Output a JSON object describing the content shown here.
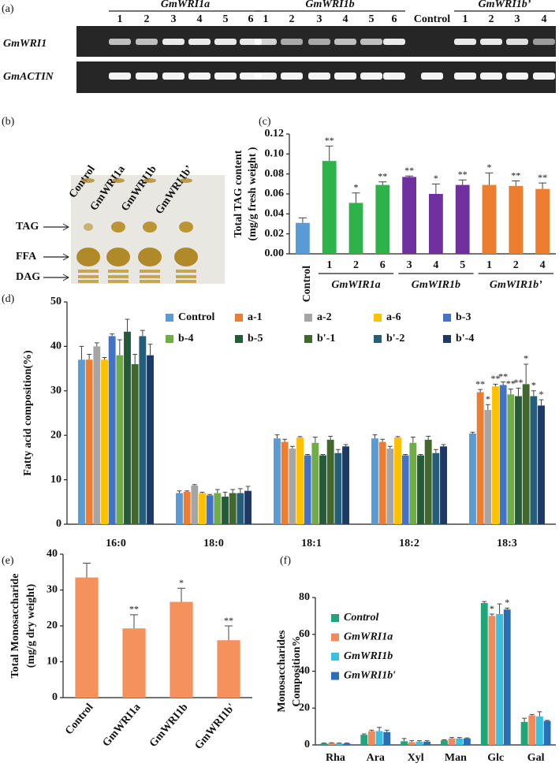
{
  "gel": {
    "panel_label": "(a)",
    "groups": [
      {
        "label": "GmWRI1a",
        "lanes": [
          "1",
          "2",
          "3",
          "4",
          "5",
          "6"
        ]
      },
      {
        "label": "GmWRI1b",
        "lanes": [
          "1",
          "2",
          "3",
          "4",
          "5",
          "6"
        ]
      },
      {
        "label": "Control",
        "lanes": []
      },
      {
        "label": "GmWRI1b’",
        "lanes": [
          "1",
          "2",
          "3",
          "4"
        ]
      }
    ],
    "rows": [
      "GmWRI1",
      "GmACTIN"
    ]
  },
  "tlc": {
    "panel_label": "(b)",
    "lanes": [
      "Control",
      "GmWRI1a",
      "GmWRI1b",
      "GmWRI1b’"
    ],
    "spots": [
      "TAG",
      "FFA",
      "DAG"
    ]
  },
  "chart_data": [
    {
      "type": "bar",
      "panel_label": "(c)",
      "ylabel": [
        "Total TAG content",
        "(mg/g fresh weight )"
      ],
      "categories": [
        "Control",
        "1",
        "2",
        "6",
        "3",
        "4",
        "5",
        "1",
        "2",
        "4"
      ],
      "values": [
        0.031,
        0.093,
        0.051,
        0.069,
        0.077,
        0.06,
        0.069,
        0.069,
        0.068,
        0.065
      ],
      "errors": [
        0.005,
        0.015,
        0.01,
        0.003,
        0.001,
        0.01,
        0.005,
        0.012,
        0.005,
        0.006
      ],
      "colors": [
        "#5b9bd5",
        "#2db34a",
        "#2db34a",
        "#2db34a",
        "#7030a0",
        "#7030a0",
        "#7030a0",
        "#ed7d31",
        "#ed7d31",
        "#ed7d31"
      ],
      "significance": [
        null,
        "**",
        "*",
        "**",
        "**",
        "*",
        "**",
        "*",
        "**",
        "**"
      ],
      "group_labels": [
        "GmWIR1a",
        "GmWIR1b",
        "GmWIR1b’"
      ],
      "ylim": [
        0,
        0.12
      ],
      "yticks": [
        {
          "value": 0,
          "label": "0.00"
        },
        {
          "value": 0.02,
          "label": "0.02"
        },
        {
          "value": 0.04,
          "label": "0.04"
        },
        {
          "value": 0.06,
          "label": "0.06"
        },
        {
          "value": 0.08,
          "label": "0.08"
        },
        {
          "value": 0.1,
          "label": "0.10"
        },
        {
          "value": 0.12,
          "label": "0.12"
        }
      ]
    },
    {
      "type": "bar",
      "panel_label": "(d)",
      "ylabel": [
        "Fatty acid composition(%)"
      ],
      "categories": [
        "16:0",
        "18:0",
        "18:1",
        "18:2",
        "18:3"
      ],
      "legend": "top",
      "series": [
        {
          "name": "Control",
          "color": "#5b9bd5",
          "values": [
            37,
            7,
            19.3,
            19.3,
            20.4
          ],
          "errors": [
            3,
            0.5,
            0.8,
            0.8,
            0.3
          ],
          "significance": [
            null,
            null,
            null,
            null,
            null
          ]
        },
        {
          "name": "a-1",
          "color": "#ed7d31",
          "values": [
            37,
            7.3,
            18.5,
            18.5,
            29.7
          ],
          "errors": [
            1.2,
            0.2,
            0.6,
            0.6,
            0.6
          ],
          "significance": [
            null,
            null,
            null,
            null,
            "**"
          ]
        },
        {
          "name": "a-2",
          "color": "#a5a5a5",
          "values": [
            40,
            8.7,
            17,
            17,
            25.7
          ],
          "errors": [
            0.8,
            0.2,
            0.5,
            0.5,
            1.2
          ],
          "significance": [
            null,
            null,
            null,
            null,
            "*"
          ]
        },
        {
          "name": "a-6",
          "color": "#ffc000",
          "values": [
            37,
            7,
            19.5,
            19.5,
            31
          ],
          "errors": [
            0.5,
            0.2,
            0.2,
            0.2,
            0.5
          ],
          "significance": [
            null,
            null,
            null,
            null,
            "**"
          ]
        },
        {
          "name": "b-3",
          "color": "#4472c4",
          "values": [
            42.3,
            6.5,
            15.5,
            15.5,
            31.3
          ],
          "errors": [
            0.5,
            0.2,
            0.2,
            0.2,
            0.7
          ],
          "significance": [
            null,
            null,
            null,
            null,
            "**"
          ]
        },
        {
          "name": "b-4",
          "color": "#70ad47",
          "values": [
            38,
            7,
            18.3,
            18.3,
            29.2
          ],
          "errors": [
            3.5,
            0.8,
            1.3,
            1.3,
            1.2
          ],
          "significance": [
            null,
            null,
            null,
            null,
            "**"
          ]
        },
        {
          "name": "b-5",
          "color": "#235a38",
          "values": [
            43.3,
            6.2,
            15.5,
            15.5,
            28.8
          ],
          "errors": [
            2.8,
            1,
            0.2,
            0.2,
            1.8
          ],
          "significance": [
            null,
            null,
            null,
            null,
            "**"
          ]
        },
        {
          "name": "b'-1",
          "color": "#43682b",
          "values": [
            36,
            7,
            19,
            19,
            31.5
          ],
          "errors": [
            2.2,
            0.8,
            0.8,
            0.8,
            4.5
          ],
          "significance": [
            null,
            null,
            null,
            null,
            "*"
          ]
        },
        {
          "name": "b'-2",
          "color": "#255e78",
          "values": [
            42.3,
            7,
            16,
            16,
            28.8
          ],
          "errors": [
            1.3,
            1,
            0.8,
            0.8,
            1.2
          ],
          "significance": [
            null,
            null,
            null,
            null,
            "*"
          ]
        },
        {
          "name": "b'-4",
          "color": "#1f3864",
          "values": [
            38,
            7.5,
            17.5,
            17.5,
            26.7
          ],
          "errors": [
            2.5,
            1,
            0.4,
            0.4,
            1.3
          ],
          "significance": [
            null,
            null,
            null,
            null,
            "*"
          ]
        }
      ],
      "ylim": [
        0,
        50
      ],
      "yticks": [
        0,
        10,
        20,
        30,
        40,
        50
      ]
    },
    {
      "type": "bar",
      "panel_label": "(e)",
      "ylabel": [
        "Total Monosaccharide",
        "(mg/g  dry weight)"
      ],
      "categories": [
        "Control",
        "GmWRI1a",
        "GmWRI1b",
        "GmWRI1b'"
      ],
      "values": [
        33.5,
        19.3,
        26.7,
        16
      ],
      "errors": [
        4,
        3.8,
        3.8,
        4
      ],
      "color": "#f4915c",
      "significance": [
        null,
        "**",
        "*",
        "**"
      ],
      "ylim": [
        0,
        40
      ],
      "yticks": [
        0,
        10,
        20,
        30,
        40
      ]
    },
    {
      "type": "bar",
      "panel_label": "(f)",
      "ylabel": [
        "Monosaccharides",
        "Composition%"
      ],
      "categories": [
        "Rha",
        "Ara",
        "Xyl",
        "Man",
        "Glc",
        "Gal"
      ],
      "legend": "upper left",
      "series": [
        {
          "name": "Control",
          "color": "#21a67a",
          "values": [
            0.8,
            5.5,
            2,
            2.5,
            77,
            12.5
          ],
          "errors": [
            0.2,
            0.5,
            1.5,
            0.3,
            0.8,
            2
          ],
          "significance": [
            null,
            null,
            null,
            null,
            null,
            null
          ]
        },
        {
          "name": "GmWRI1a",
          "color": "#f08a5d",
          "values": [
            1,
            7.5,
            1.5,
            3.5,
            70,
            16
          ],
          "errors": [
            0.2,
            0.5,
            0.8,
            0.5,
            1,
            0.5
          ],
          "significance": [
            null,
            null,
            null,
            null,
            "*",
            null
          ]
        },
        {
          "name": "GmWRI1b",
          "color": "#3cc0e0",
          "values": [
            0.8,
            7.5,
            1.8,
            3.5,
            71,
            15.5
          ],
          "errors": [
            0.2,
            2,
            0.5,
            0.5,
            5.5,
            2.5
          ],
          "significance": [
            null,
            null,
            null,
            null,
            null,
            null
          ]
        },
        {
          "name": "GmWRI1b′",
          "color": "#2a6fb5",
          "values": [
            0.8,
            7,
            1.8,
            3.5,
            73.5,
            13
          ],
          "errors": [
            0.2,
            1,
            0.5,
            0.3,
            0.8,
            0.3
          ],
          "significance": [
            null,
            null,
            null,
            null,
            "*",
            null
          ]
        }
      ],
      "ylim": [
        0,
        80
      ],
      "yticks": [
        0,
        20,
        40,
        60,
        80
      ]
    }
  ]
}
